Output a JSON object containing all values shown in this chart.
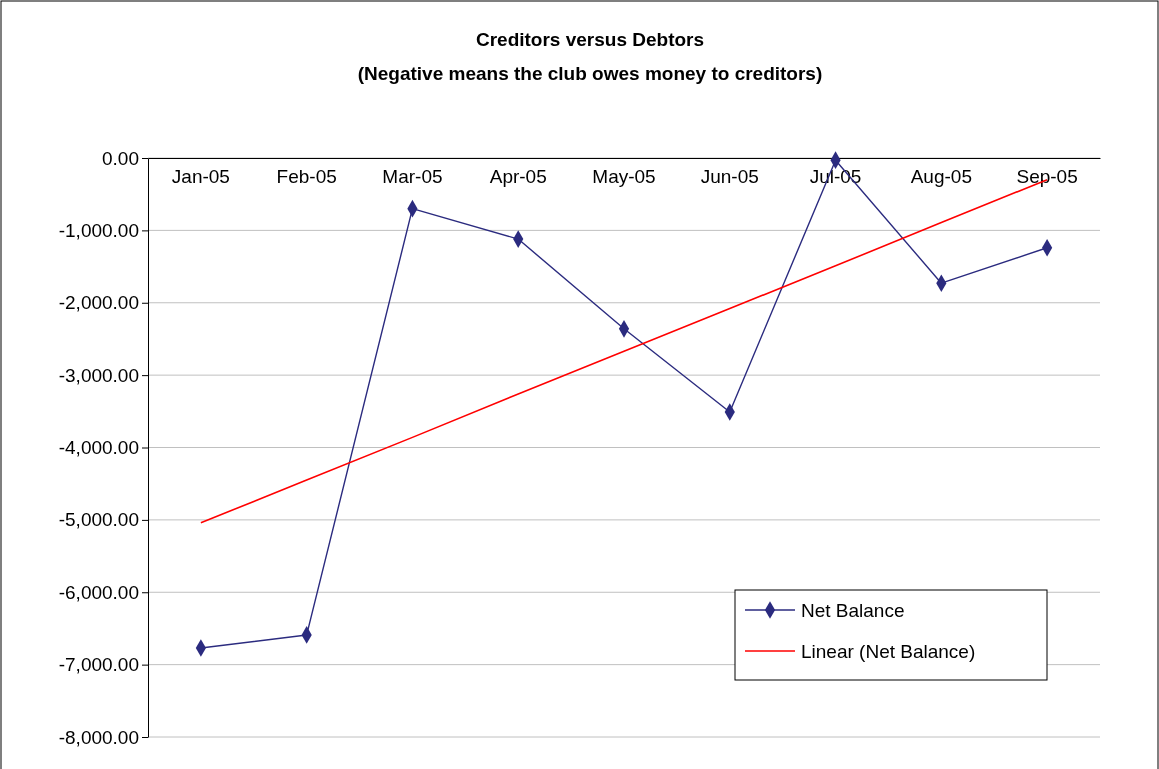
{
  "chart_data": {
    "type": "line",
    "title": "Creditors versus Debtors\n(Negative means the club owes money to creditors)",
    "categories": [
      "Jan-05",
      "Feb-05",
      "Mar-05",
      "Apr-05",
      "May-05",
      "Jun-05",
      "Jul-05",
      "Aug-05",
      "Sep-05"
    ],
    "series": [
      {
        "name": "Net Balance",
        "color": "#2b2b7f",
        "marker": "diamond",
        "values": [
          -6770,
          -6590,
          -700,
          -1120,
          -2360,
          -3510,
          -30,
          -1730,
          -1240
        ]
      },
      {
        "name": "Linear (Net Balance)",
        "color": "#ff0000",
        "marker": "none",
        "values": [
          -5040,
          -4450,
          -3860,
          -3260,
          -2670,
          -2080,
          -1490,
          -890,
          -300
        ]
      }
    ],
    "ylim": [
      -8000,
      0
    ],
    "yticks": [
      {
        "value": 0,
        "label": "0.00"
      },
      {
        "value": -1000,
        "label": "-1,000.00"
      },
      {
        "value": -2000,
        "label": "-2,000.00"
      },
      {
        "value": -3000,
        "label": "-3,000.00"
      },
      {
        "value": -4000,
        "label": "-4,000.00"
      },
      {
        "value": -5000,
        "label": "-5,000.00"
      },
      {
        "value": -6000,
        "label": "-6,000.00"
      },
      {
        "value": -7000,
        "label": "-7,000.00"
      },
      {
        "value": -8000,
        "label": "-8,000.00"
      }
    ],
    "grid": "y",
    "legend": "bottom right"
  }
}
